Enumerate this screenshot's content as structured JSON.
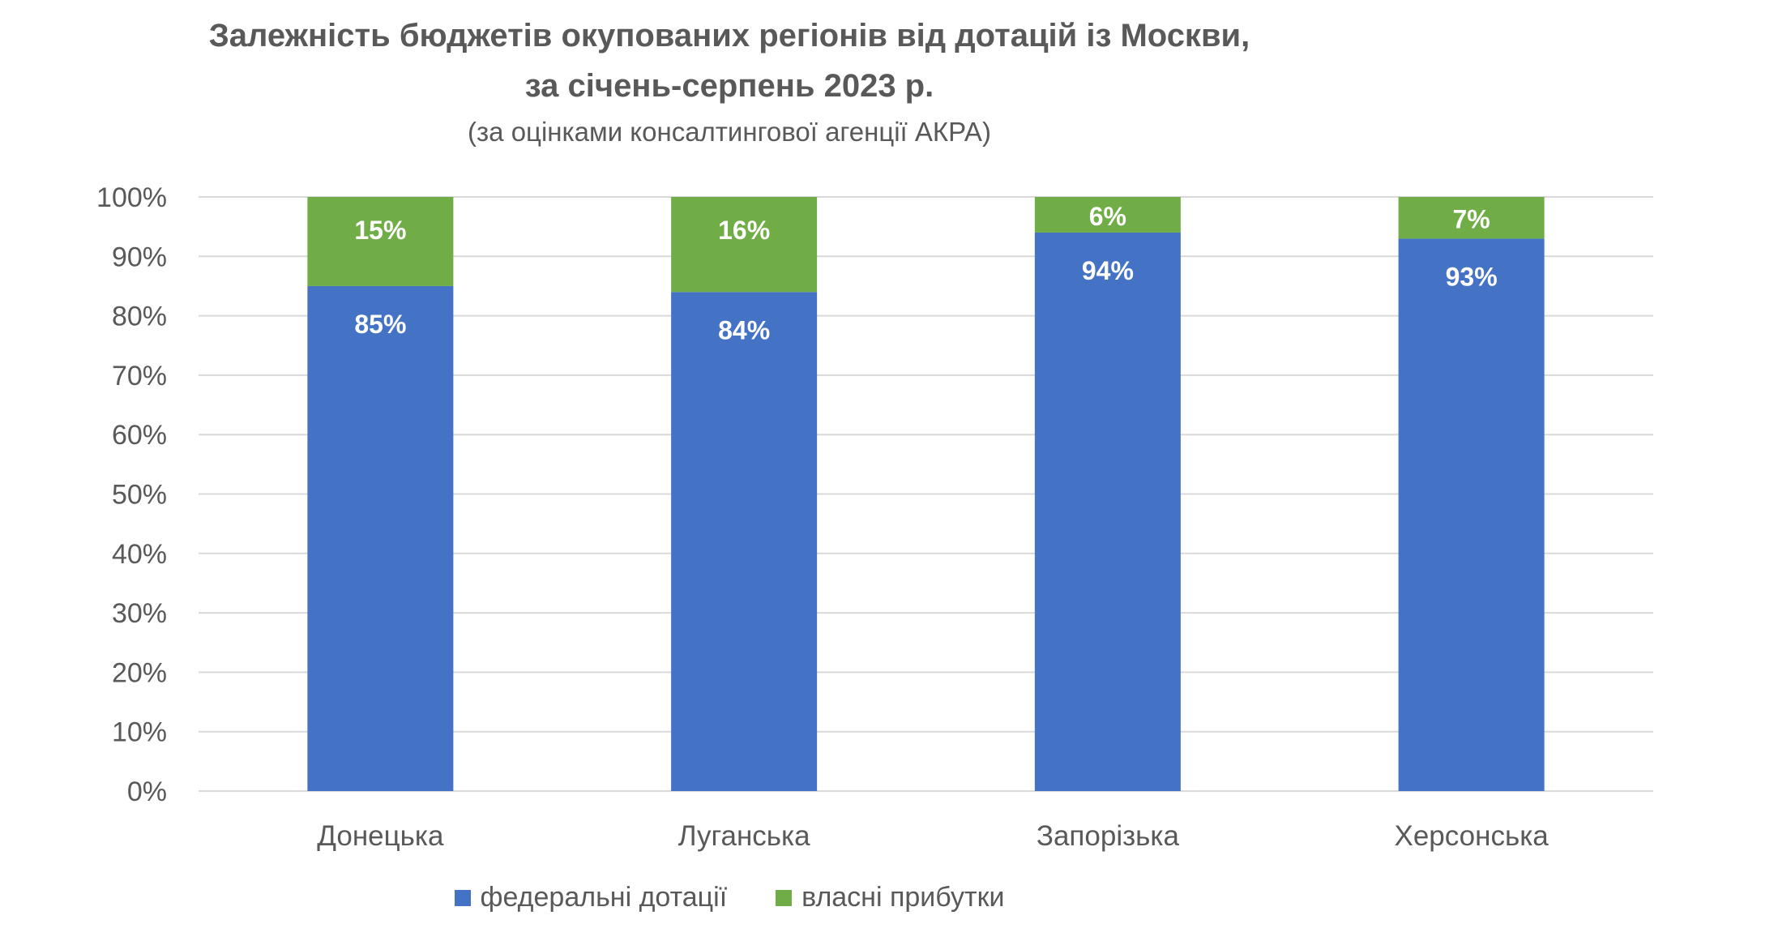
{
  "chart_data": {
    "type": "bar",
    "stacked": true,
    "title": "Залежність бюджетів окупованих регіонів від дотацій із Москви,",
    "title_line2": "за січень-серпень 2023 р.",
    "subtitle": "(за оцінками консалтингової агенції АКРА)",
    "categories": [
      "Донецька",
      "Луганська",
      "Запорізька",
      "Херсонська"
    ],
    "series": [
      {
        "name": "федеральні дотації",
        "values": [
          85,
          84,
          94,
          93
        ],
        "labels": [
          "85%",
          "84%",
          "94%",
          "93%"
        ],
        "color": "#4472C4"
      },
      {
        "name": "власні прибутки",
        "values": [
          15,
          16,
          6,
          7
        ],
        "labels": [
          "15%",
          "16%",
          "6%",
          "7%"
        ],
        "color": "#70AD47"
      }
    ],
    "ylim": [
      0,
      100
    ],
    "yticks": [
      "0%",
      "10%",
      "20%",
      "30%",
      "40%",
      "50%",
      "60%",
      "70%",
      "80%",
      "90%",
      "100%"
    ],
    "grid": true,
    "legend": "bottom"
  }
}
